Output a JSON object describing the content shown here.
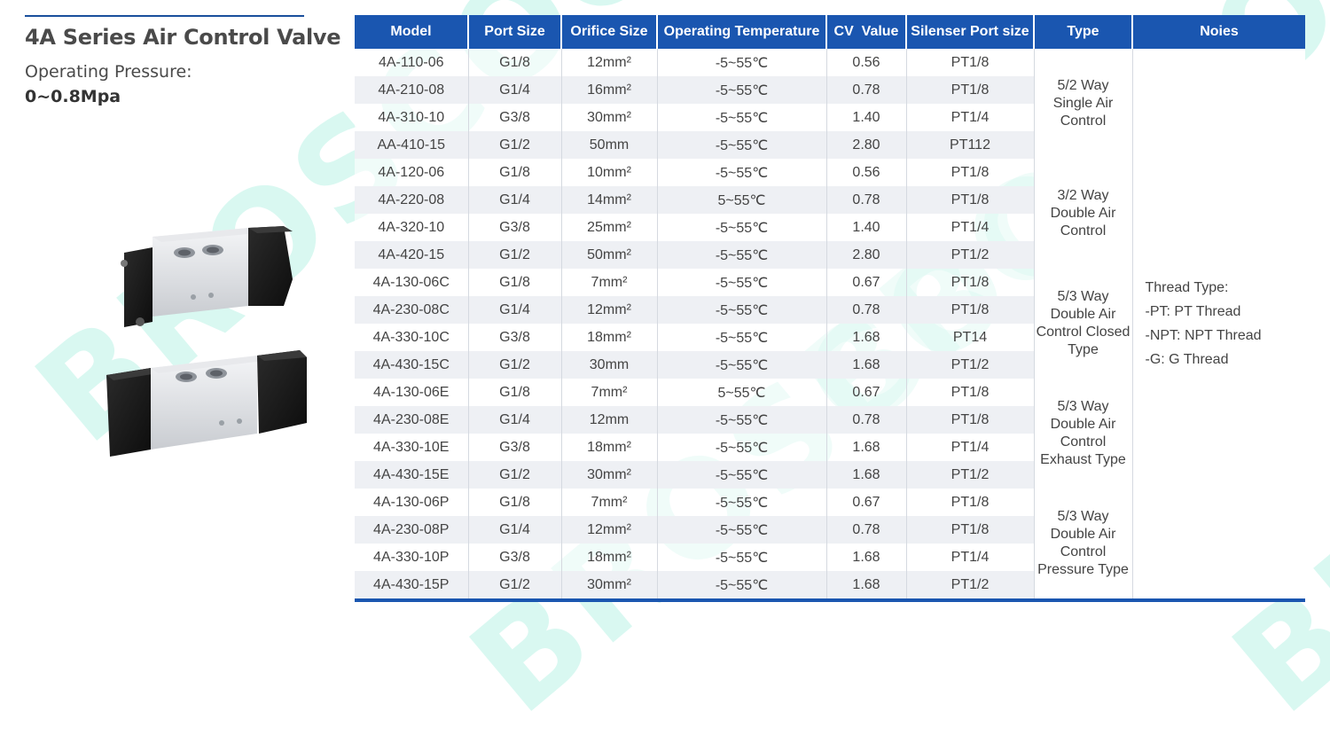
{
  "watermark_text": "BROSCOO",
  "product": {
    "title": "4A Series Air Control Valve",
    "pressure_label": "Operating Pressure:",
    "pressure_value": "0~0.8Mpa"
  },
  "table": {
    "headers": [
      "Model",
      "Port Size",
      "Orifice Size",
      "Operating Temperature",
      "CV  Value",
      "Silenser Port size",
      "Type",
      "Noies"
    ],
    "rows": [
      [
        "4A-110-06",
        "G1/8",
        "12mm²",
        "-5~55℃",
        "0.56",
        "PT1/8"
      ],
      [
        "4A-210-08",
        "G1/4",
        "16mm²",
        "-5~55℃",
        "0.78",
        "PT1/8"
      ],
      [
        "4A-310-10",
        "G3/8",
        "30mm²",
        "-5~55℃",
        "1.40",
        "PT1/4"
      ],
      [
        "AA-410-15",
        "G1/2",
        "50mm",
        "-5~55℃",
        "2.80",
        "PT112"
      ],
      [
        "4A-120-06",
        "G1/8",
        "10mm²",
        "-5~55℃",
        "0.56",
        "PT1/8"
      ],
      [
        "4A-220-08",
        "G1/4",
        "14mm²",
        "5~55℃",
        "0.78",
        "PT1/8"
      ],
      [
        "4A-320-10",
        "G3/8",
        "25mm²",
        "-5~55℃",
        "1.40",
        "PT1/4"
      ],
      [
        "4A-420-15",
        "G1/2",
        "50mm²",
        "-5~55℃",
        "2.80",
        "PT1/2"
      ],
      [
        "4A-130-06C",
        "G1/8",
        "7mm²",
        "-5~55℃",
        "0.67",
        "PT1/8"
      ],
      [
        "4A-230-08C",
        "G1/4",
        "12mm²",
        "-5~55℃",
        "0.78",
        "PT1/8"
      ],
      [
        "4A-330-10C",
        "G3/8",
        "18mm²",
        "-5~55℃",
        "1.68",
        "PT14"
      ],
      [
        "4A-430-15C",
        "G1/2",
        "30mm",
        "-5~55℃",
        "1.68",
        "PT1/2"
      ],
      [
        "4A-130-06E",
        "G1/8",
        "7mm²",
        "5~55℃",
        "0.67",
        "PT1/8"
      ],
      [
        "4A-230-08E",
        "G1/4",
        "12mm",
        "-5~55℃",
        "0.78",
        "PT1/8"
      ],
      [
        "4A-330-10E",
        "G3/8",
        "18mm²",
        "-5~55℃",
        "1.68",
        "PT1/4"
      ],
      [
        "4A-430-15E",
        "G1/2",
        "30mm²",
        "-5~55℃",
        "1.68",
        "PT1/2"
      ],
      [
        "4A-130-06P",
        "G1/8",
        "7mm²",
        "-5~55℃",
        "0.67",
        "PT1/8"
      ],
      [
        "4A-230-08P",
        "G1/4",
        "12mm²",
        "-5~55℃",
        "0.78",
        "PT1/8"
      ],
      [
        "4A-330-10P",
        "G3/8",
        "18mm²",
        "-5~55℃",
        "1.68",
        "PT1/4"
      ],
      [
        "4A-430-15P",
        "G1/2",
        "30mm²",
        "-5~55℃",
        "1.68",
        "PT1/2"
      ]
    ],
    "types": [
      [
        "5/2 Way",
        "Single Air",
        "Control"
      ],
      [
        "3/2 Way",
        "Double  Air",
        "Control"
      ],
      [
        "5/3 Way",
        "Double Air",
        "Control Closed",
        "Type"
      ],
      [
        "5/3 Way",
        "Double Air",
        "Control",
        "Exhaust Type"
      ],
      [
        "5/3 Way",
        "Double Air",
        "Control",
        "Pressure Type"
      ]
    ],
    "notes": [
      "Thread Type:",
      "-PT: PT Thread",
      "-NPT: NPT Thread",
      "-G: G Thread"
    ]
  },
  "colors": {
    "header_bg": "#1a56b0",
    "accent": "#1a4f9c",
    "watermark": "#78e6cd"
  }
}
